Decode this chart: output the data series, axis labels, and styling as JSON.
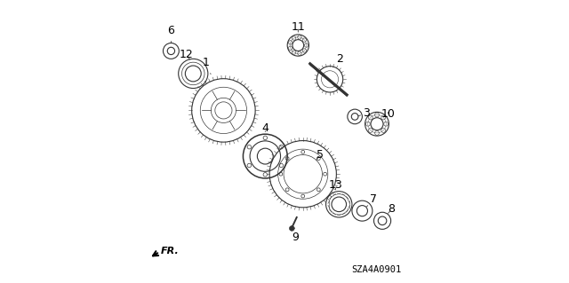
{
  "bg_color": "#ffffff",
  "diagram_code": "SZA4A0901",
  "fr_label": "FR.",
  "line_color": "#333333",
  "label_fontsize": 9,
  "code_fontsize": 7.5
}
